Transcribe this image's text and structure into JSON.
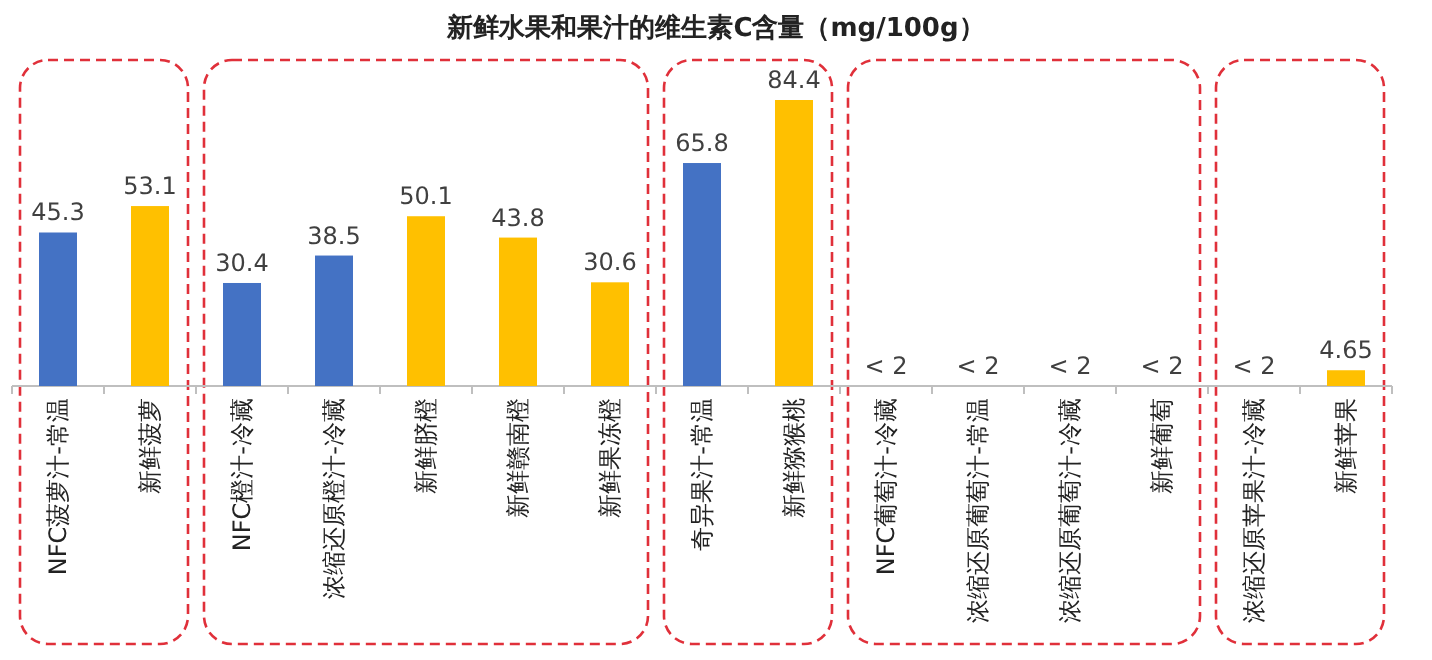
{
  "chart_data": {
    "type": "bar",
    "title": "新鲜水果和果汁的维生素C含量（mg/100g）",
    "categories": [
      "NFC菠萝汁-常温",
      "新鲜菠萝",
      "NFC橙汁-冷藏",
      "浓缩还原橙汁-冷藏",
      "新鲜脐橙",
      "新鲜赣南橙",
      "新鲜果冻橙",
      "奇异果汁-常温",
      "新鲜猕猴桃",
      "NFC葡萄汁-冷藏",
      "浓缩还原葡萄汁-常温",
      "浓缩还原葡萄汁-冷藏",
      "新鲜葡萄",
      "浓缩还原苹果汁-冷藏",
      "新鲜苹果"
    ],
    "values": [
      45.3,
      53.1,
      30.4,
      38.5,
      50.1,
      43.8,
      30.6,
      65.8,
      84.4,
      null,
      null,
      null,
      null,
      null,
      4.65
    ],
    "value_labels": [
      "45.3",
      "53.1",
      "30.4",
      "38.5",
      "50.1",
      "43.8",
      "30.6",
      "65.8",
      "84.4",
      "< 2",
      "< 2",
      "< 2",
      "< 2",
      "< 2",
      "4.65"
    ],
    "colors": [
      "#4472c4",
      "#ffc000",
      "#4472c4",
      "#4472c4",
      "#ffc000",
      "#ffc000",
      "#ffc000",
      "#4472c4",
      "#ffc000",
      "#4472c4",
      "#4472c4",
      "#4472c4",
      "#ffc000",
      "#4472c4",
      "#ffc000"
    ]
  }
}
